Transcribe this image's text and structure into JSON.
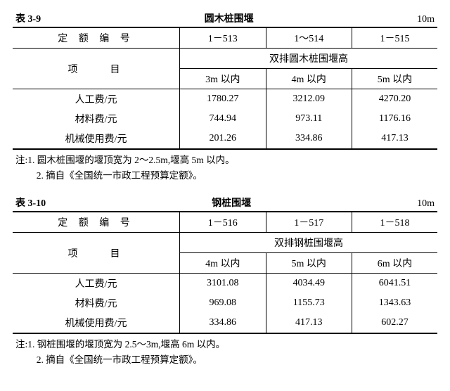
{
  "tables": [
    {
      "tno": "表 3-9",
      "title": "圆木桩围堰",
      "unit": "10m",
      "code_label": "定 额 编 号",
      "codes": [
        "1－513",
        "1～514",
        "1－515"
      ],
      "item_label": "项　　目",
      "group_label": "双排圆木桩围堰高",
      "cols": [
        "3m 以内",
        "4m 以内",
        "5m 以内"
      ],
      "rows": [
        {
          "label": "人工费/元",
          "vals": [
            "1780.27",
            "3212.09",
            "4270.20"
          ]
        },
        {
          "label": "材料费/元",
          "vals": [
            "744.94",
            "973.11",
            "1176.16"
          ]
        },
        {
          "label": "机械使用费/元",
          "vals": [
            "201.26",
            "334.86",
            "417.13"
          ]
        }
      ],
      "notes": [
        "注:1. 圆木桩围堰的堰顶宽为 2～2.5m,堰高 5m 以内。",
        "2. 摘自《全国统一市政工程预算定额》。"
      ]
    },
    {
      "tno": "表 3-10",
      "title": "钢桩围堰",
      "unit": "10m",
      "code_label": "定 额 编 号",
      "codes": [
        "1－516",
        "1－517",
        "1－518"
      ],
      "item_label": "项　　目",
      "group_label": "双排钢桩围堰高",
      "cols": [
        "4m 以内",
        "5m 以内",
        "6m 以内"
      ],
      "rows": [
        {
          "label": "人工费/元",
          "vals": [
            "3101.08",
            "4034.49",
            "6041.51"
          ]
        },
        {
          "label": "材料费/元",
          "vals": [
            "969.08",
            "1155.73",
            "1343.63"
          ]
        },
        {
          "label": "机械使用费/元",
          "vals": [
            "334.86",
            "417.13",
            "602.27"
          ]
        }
      ],
      "notes": [
        "注:1. 钢桩围堰的堰顶宽为 2.5～3m,堰高 6m 以内。",
        "2. 摘自《全国统一市政工程预算定额》。"
      ]
    }
  ]
}
